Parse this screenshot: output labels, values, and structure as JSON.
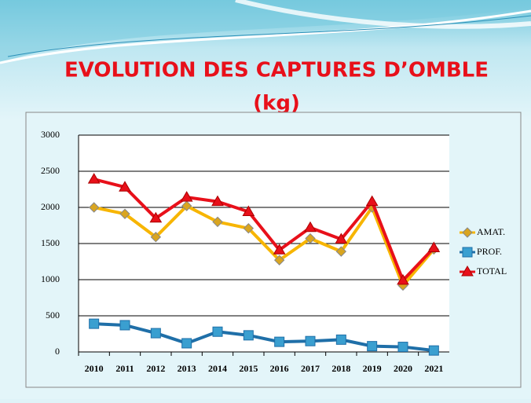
{
  "chart_data": {
    "type": "line",
    "title": "EVOLUTION DES CAPTURES D’OMBLE",
    "subtitle": "(kg)",
    "categories": [
      "2010",
      "2011",
      "2012",
      "2013",
      "2014",
      "2015",
      "2016",
      "2017",
      "2018",
      "2019",
      "2020",
      "2021"
    ],
    "series": [
      {
        "name": "AMAT.",
        "color": "#f7b500",
        "marker": "diamond",
        "marker_color": "#d9a520",
        "values": [
          2000,
          1910,
          1590,
          2020,
          1800,
          1710,
          1270,
          1570,
          1390,
          2000,
          920,
          1420
        ]
      },
      {
        "name": "PROF.",
        "color": "#1f6fa8",
        "marker": "square",
        "marker_color": "#3a9fd0",
        "values": [
          390,
          370,
          260,
          120,
          280,
          230,
          140,
          150,
          170,
          80,
          70,
          20
        ]
      },
      {
        "name": "TOTAL",
        "color": "#e8101a",
        "marker": "triangle",
        "marker_color": "#e8101a",
        "values": [
          2390,
          2280,
          1850,
          2140,
          2080,
          1940,
          1410,
          1720,
          1560,
          2080,
          990,
          1440
        ]
      }
    ],
    "ylim": [
      0,
      3000
    ],
    "yticks": [
      0,
      500,
      1000,
      1500,
      2000,
      2500,
      3000
    ],
    "grid": true,
    "legend": "right"
  }
}
